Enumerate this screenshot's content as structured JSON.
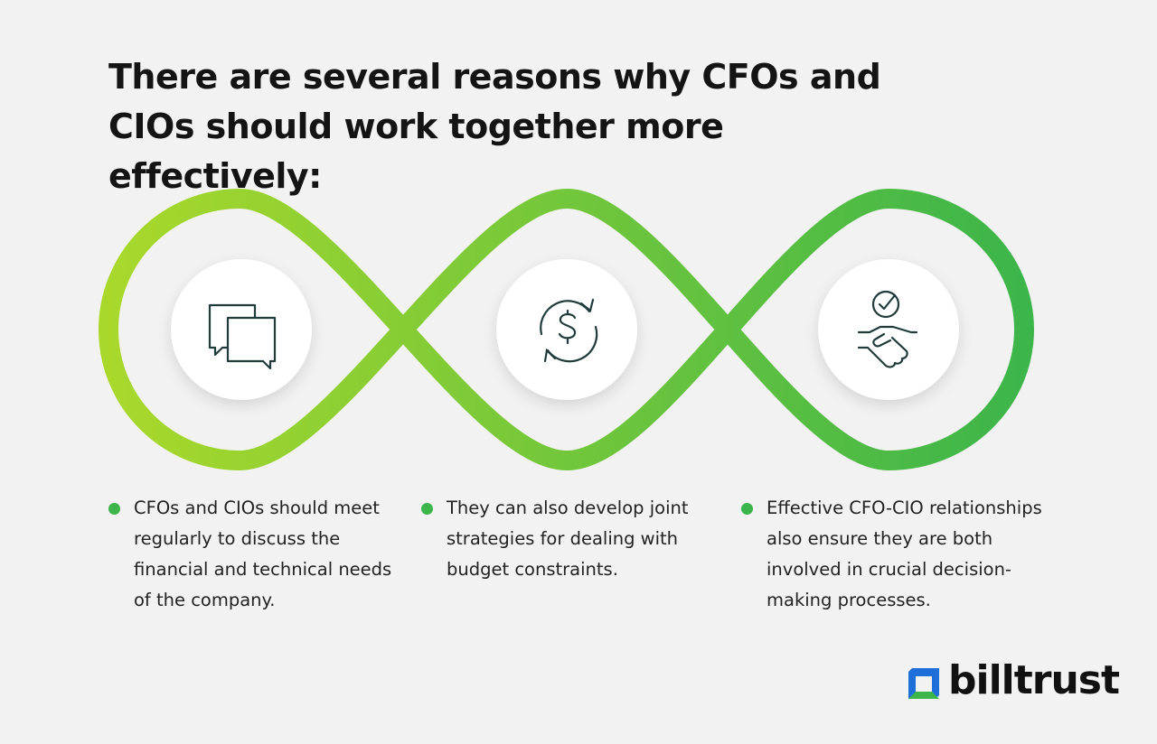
{
  "title": "There are several reasons why CFOs and CIOs should work together more effectively:",
  "points": [
    "CFOs and CIOs should meet regularly to discuss the financial and technical needs of the company.",
    "They can also develop joint strategies for dealing with budget constraints.",
    "Effective CFO-CIO relationships also ensure they are both involved in crucial decision-making processes."
  ],
  "logo": "billtrust"
}
